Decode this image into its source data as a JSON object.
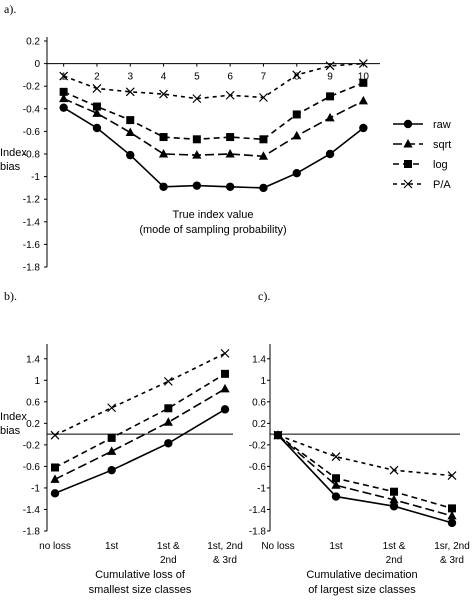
{
  "chart_data": [
    {
      "panel": "a).",
      "type": "line",
      "xlabel": [
        "True index value",
        "(mode of sampling probability)"
      ],
      "ylabel": [
        "Index",
        "bias"
      ],
      "x": [
        1,
        2,
        3,
        4,
        5,
        6,
        7,
        8,
        9,
        10
      ],
      "xticks": [
        "1",
        "2",
        "3",
        "4",
        "5",
        "6",
        "7",
        "8",
        "9",
        "10"
      ],
      "yticks": [
        "0.2",
        "0",
        "-0.2",
        "-0.4",
        "-0.6",
        "-0.8",
        "-1",
        "-1.2",
        "-1.4",
        "-1.6",
        "-1.8"
      ],
      "ylim": [
        -1.8,
        0.2
      ],
      "legend_position": "right",
      "series": [
        {
          "name": "raw",
          "marker": "circle",
          "dash": "solid",
          "values": [
            -0.39,
            -0.57,
            -0.81,
            -1.09,
            -1.08,
            -1.09,
            -1.1,
            -0.97,
            -0.8,
            -0.57
          ]
        },
        {
          "name": "sqrt",
          "marker": "triangle",
          "dash": "long",
          "values": [
            -0.31,
            -0.44,
            -0.61,
            -0.8,
            -0.81,
            -0.8,
            -0.82,
            -0.64,
            -0.48,
            -0.33
          ]
        },
        {
          "name": "log",
          "marker": "square",
          "dash": "medium",
          "values": [
            -0.25,
            -0.38,
            -0.5,
            -0.65,
            -0.67,
            -0.65,
            -0.67,
            -0.45,
            -0.29,
            -0.17
          ]
        },
        {
          "name": "P/A",
          "marker": "x",
          "dash": "short",
          "values": [
            -0.11,
            -0.22,
            -0.25,
            -0.27,
            -0.31,
            -0.28,
            -0.3,
            -0.1,
            -0.02,
            0.0
          ]
        }
      ]
    },
    {
      "panel": "b).",
      "type": "line",
      "xlabel": [
        "Cumulative loss of",
        "smallest size classes"
      ],
      "ylabel": [
        "Index",
        "bias"
      ],
      "categories": [
        [
          "no loss"
        ],
        [
          "1st"
        ],
        [
          "1st &",
          "2nd"
        ],
        [
          "1st, 2nd",
          "& 3rd"
        ]
      ],
      "yticks": [
        "1.4",
        "1",
        "0.6",
        "0.2",
        "-0.2",
        "-0.6",
        "-1",
        "-1.4",
        "-1.8"
      ],
      "ylim": [
        -1.8,
        1.6
      ],
      "series": [
        {
          "name": "raw",
          "values": [
            -1.1,
            -0.67,
            -0.17,
            0.46
          ]
        },
        {
          "name": "sqrt",
          "values": [
            -0.84,
            -0.32,
            0.22,
            0.84
          ]
        },
        {
          "name": "log",
          "values": [
            -0.62,
            -0.07,
            0.48,
            1.12
          ]
        },
        {
          "name": "P/A",
          "values": [
            -0.02,
            0.49,
            0.98,
            1.5
          ]
        }
      ]
    },
    {
      "panel": "c).",
      "type": "line",
      "xlabel": [
        "Cumulative decimation",
        "of largest size classes"
      ],
      "categories": [
        [
          "No loss"
        ],
        [
          "1st"
        ],
        [
          "1st &",
          "2nd"
        ],
        [
          "1sr, 2nd",
          "& 3rd"
        ]
      ],
      "yticks": [
        "1.4",
        "1",
        "0.6",
        "0.2",
        "-0.2",
        "-0.6",
        "-1",
        "-1.4",
        "-1.8"
      ],
      "ylim": [
        -1.8,
        1.6
      ],
      "series": [
        {
          "name": "raw",
          "values": [
            -0.02,
            -1.16,
            -1.34,
            -1.65
          ]
        },
        {
          "name": "sqrt",
          "values": [
            -0.02,
            -0.95,
            -1.22,
            -1.52
          ]
        },
        {
          "name": "log",
          "values": [
            -0.02,
            -0.82,
            -1.07,
            -1.38
          ]
        },
        {
          "name": "P/A",
          "values": [
            -0.02,
            -0.42,
            -0.67,
            -0.77
          ]
        }
      ]
    }
  ]
}
